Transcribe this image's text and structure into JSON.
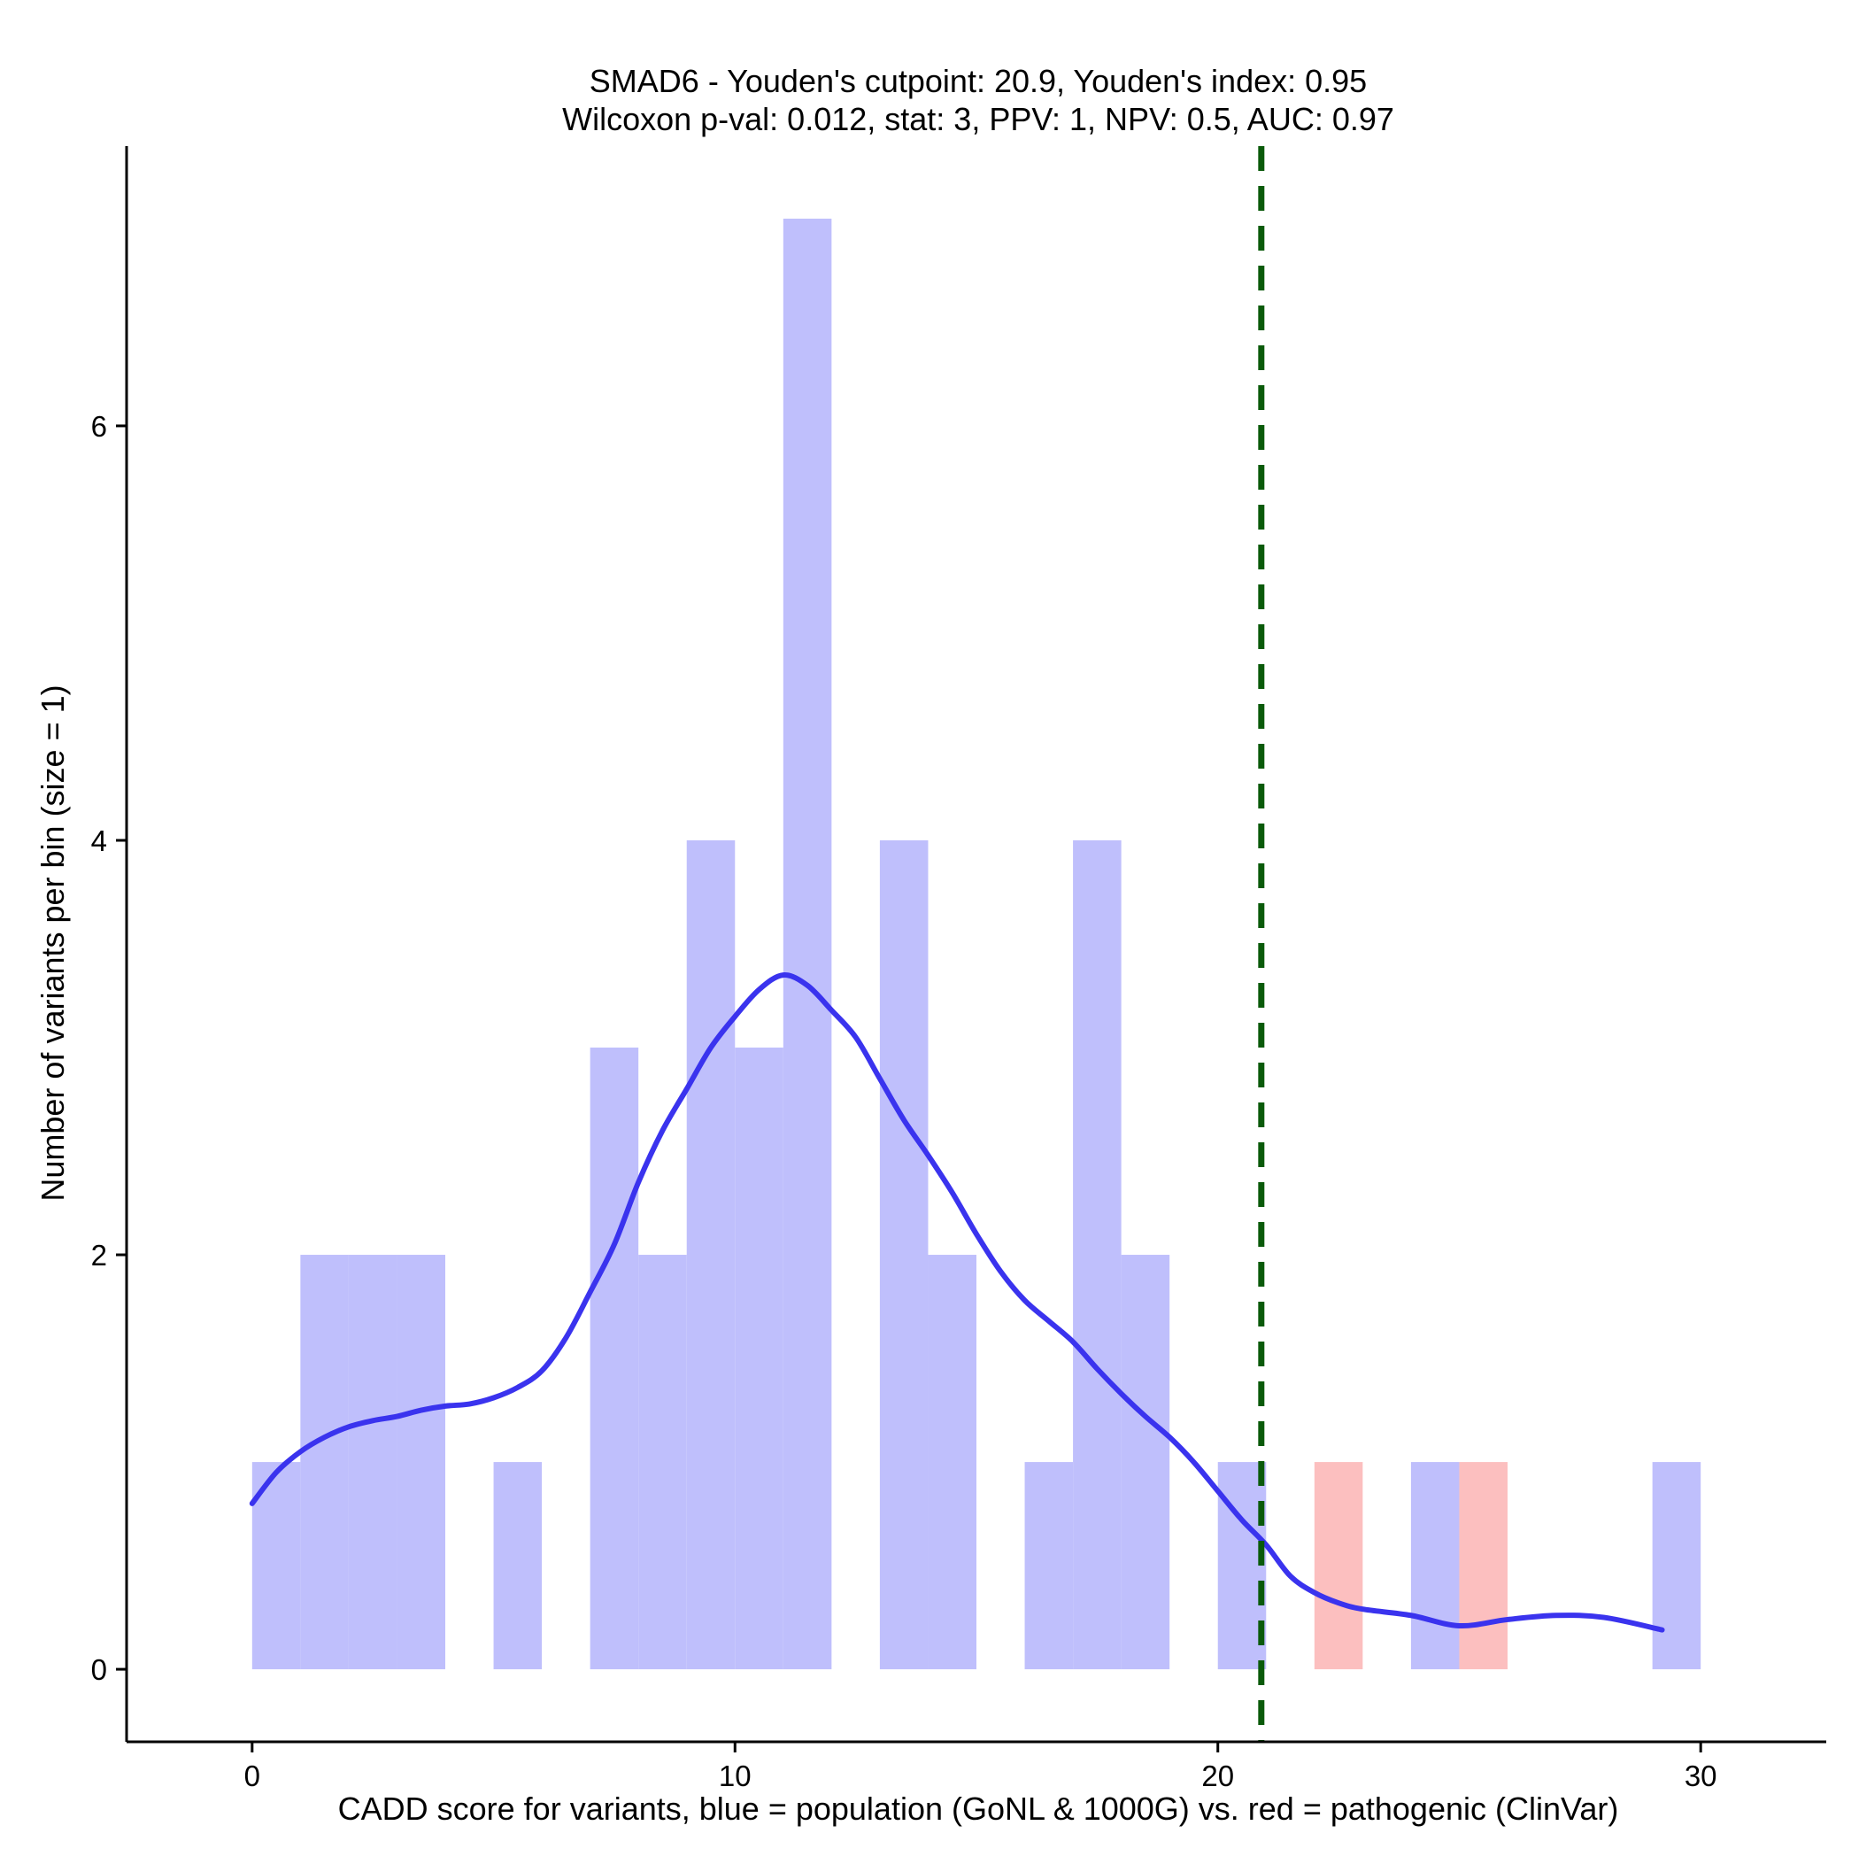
{
  "chart_data": {
    "type": "histogram",
    "title_line1": "SMAD6 - Youden's cutpoint: 20.9, Youden's index: 0.95",
    "title_line2": "Wilcoxon p-val: 0.012, stat: 3, PPV: 1, NPV: 0.5, AUC: 0.97",
    "xlabel": "CADD score for variants, blue = population (GoNL & 1000G) vs. red = pathogenic (ClinVar)",
    "ylabel": "Number of variants per bin (size = 1)",
    "xlim": [
      -2.6,
      32.6
    ],
    "ylim": [
      -0.35,
      7.35
    ],
    "x_ticks": [
      0,
      10,
      20,
      30
    ],
    "y_ticks": [
      0,
      2,
      4,
      6
    ],
    "bin_width": 1,
    "cutpoint": 20.9,
    "colors": {
      "population": "#bfbffc",
      "pathogenic": "#fcbfbf",
      "density": "#3a33ee",
      "cutpoint": "#0a5a0a"
    },
    "series": [
      {
        "name": "population (GoNL & 1000G)",
        "bins": [
          {
            "x": 0,
            "count": 1
          },
          {
            "x": 1,
            "count": 2
          },
          {
            "x": 2,
            "count": 2
          },
          {
            "x": 3,
            "count": 2
          },
          {
            "x": 5,
            "count": 1
          },
          {
            "x": 7,
            "count": 3
          },
          {
            "x": 8,
            "count": 2
          },
          {
            "x": 9,
            "count": 4
          },
          {
            "x": 10,
            "count": 3
          },
          {
            "x": 11,
            "count": 7
          },
          {
            "x": 13,
            "count": 4
          },
          {
            "x": 14,
            "count": 2
          },
          {
            "x": 16,
            "count": 1
          },
          {
            "x": 17,
            "count": 4
          },
          {
            "x": 18,
            "count": 2
          },
          {
            "x": 20,
            "count": 1
          },
          {
            "x": 24,
            "count": 1
          },
          {
            "x": 29,
            "count": 1
          }
        ]
      },
      {
        "name": "pathogenic (ClinVar)",
        "bins": [
          {
            "x": 22,
            "count": 1
          },
          {
            "x": 25,
            "count": 1
          }
        ]
      }
    ],
    "density": {
      "name": "density curve",
      "points": [
        [
          0,
          0.8
        ],
        [
          0.5,
          0.95
        ],
        [
          1,
          1.05
        ],
        [
          1.5,
          1.12
        ],
        [
          2,
          1.17
        ],
        [
          2.5,
          1.2
        ],
        [
          3,
          1.22
        ],
        [
          3.5,
          1.25
        ],
        [
          4,
          1.27
        ],
        [
          4.5,
          1.28
        ],
        [
          5,
          1.31
        ],
        [
          5.5,
          1.36
        ],
        [
          6,
          1.44
        ],
        [
          6.5,
          1.6
        ],
        [
          7,
          1.82
        ],
        [
          7.5,
          2.05
        ],
        [
          8,
          2.35
        ],
        [
          8.5,
          2.6
        ],
        [
          9,
          2.8
        ],
        [
          9.5,
          3.0
        ],
        [
          10,
          3.15
        ],
        [
          10.5,
          3.28
        ],
        [
          11,
          3.35
        ],
        [
          11.5,
          3.3
        ],
        [
          12,
          3.18
        ],
        [
          12.5,
          3.05
        ],
        [
          13,
          2.85
        ],
        [
          13.5,
          2.65
        ],
        [
          14,
          2.48
        ],
        [
          14.5,
          2.3
        ],
        [
          15,
          2.1
        ],
        [
          15.5,
          1.92
        ],
        [
          16,
          1.78
        ],
        [
          16.5,
          1.68
        ],
        [
          17,
          1.58
        ],
        [
          17.5,
          1.45
        ],
        [
          18,
          1.33
        ],
        [
          18.5,
          1.22
        ],
        [
          19,
          1.12
        ],
        [
          19.5,
          1.0
        ],
        [
          20,
          0.86
        ],
        [
          20.5,
          0.72
        ],
        [
          21,
          0.6
        ],
        [
          21.5,
          0.45
        ],
        [
          22,
          0.37
        ],
        [
          22.5,
          0.32
        ],
        [
          23,
          0.29
        ],
        [
          24,
          0.26
        ],
        [
          25,
          0.21
        ],
        [
          26,
          0.24
        ],
        [
          27,
          0.26
        ],
        [
          28,
          0.25
        ],
        [
          29.2,
          0.19
        ]
      ]
    }
  }
}
